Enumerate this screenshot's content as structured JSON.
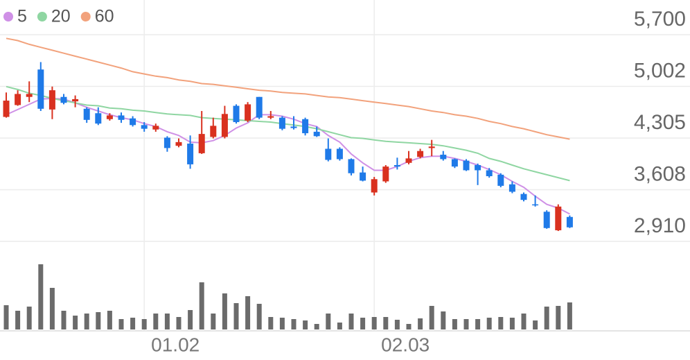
{
  "chart_data": {
    "type": "candlestick",
    "categories": [
      null,
      null,
      null,
      null,
      null,
      null,
      null,
      null,
      null,
      null,
      null,
      null,
      "01.02",
      null,
      null,
      null,
      null,
      null,
      null,
      null,
      null,
      null,
      null,
      null,
      null,
      null,
      null,
      null,
      null,
      null,
      null,
      null,
      "02.03",
      null,
      null,
      null,
      null,
      null,
      null,
      null,
      null,
      null,
      null,
      null,
      null,
      null,
      null,
      null,
      null,
      null
    ],
    "open": [
      4590,
      4750,
      4860,
      5230,
      4690,
      4860,
      4800,
      4700,
      4640,
      4560,
      4610,
      4570,
      4480,
      4420,
      4310,
      4200,
      4230,
      4100,
      4320,
      4320,
      4740,
      4540,
      4860,
      4580,
      4580,
      4460,
      4560,
      4390,
      4160,
      4160,
      4020,
      3840,
      3570,
      3720,
      3940,
      3970,
      4050,
      4170,
      4080,
      4020,
      4000,
      3940,
      3870,
      3810,
      3680,
      3550,
      3410,
      3310,
      3060,
      3240
    ],
    "high": [
      4920,
      4950,
      5070,
      5330,
      5000,
      4900,
      4880,
      4720,
      4720,
      4640,
      4650,
      4600,
      4520,
      4500,
      4330,
      4300,
      4340,
      4670,
      4580,
      4740,
      4760,
      4790,
      4860,
      4670,
      4600,
      4600,
      4580,
      4460,
      4300,
      4180,
      4030,
      3920,
      3780,
      3940,
      4040,
      4130,
      4160,
      4280,
      4130,
      4030,
      4020,
      3960,
      3900,
      3830,
      3720,
      3570,
      3530,
      3330,
      3410,
      3260
    ],
    "low": [
      4580,
      4740,
      4790,
      4670,
      4560,
      4760,
      4720,
      4510,
      4480,
      4540,
      4510,
      4460,
      4390,
      4390,
      4120,
      4180,
      3890,
      4090,
      4300,
      4300,
      4500,
      4520,
      4560,
      4560,
      4410,
      4420,
      4340,
      4320,
      3990,
      4000,
      3800,
      3720,
      3530,
      3700,
      3880,
      3950,
      4030,
      4060,
      4000,
      3900,
      3860,
      3670,
      3770,
      3640,
      3560,
      3450,
      3380,
      3080,
      3050,
      3090
    ],
    "close": [
      4810,
      4900,
      4900,
      4700,
      4950,
      4780,
      4830,
      4550,
      4500,
      4610,
      4550,
      4480,
      4430,
      4470,
      4170,
      4250,
      3950,
      4360,
      4470,
      4630,
      4520,
      4760,
      4580,
      4600,
      4430,
      4440,
      4370,
      4330,
      4010,
      4020,
      3830,
      3730,
      3750,
      3920,
      3920,
      4030,
      4130,
      4190,
      4020,
      3920,
      3870,
      3870,
      3790,
      3660,
      3580,
      3470,
      3400,
      3090,
      3380,
      3100
    ],
    "up_color": "#d9311f",
    "down_color": "#1f7ae8",
    "series": [
      {
        "name": "5",
        "color": "#cf90e6",
        "values": [
          4620,
          4690,
          4760,
          4830,
          4840,
          4830,
          4780,
          4720,
          4670,
          4620,
          4580,
          4550,
          4500,
          4460,
          4390,
          4340,
          4250,
          4240,
          4270,
          4340,
          4440,
          4510,
          4620,
          4620,
          4600,
          4560,
          4500,
          4460,
          4340,
          4250,
          4090,
          3970,
          3870,
          3870,
          3920,
          3990,
          4040,
          4060,
          4060,
          4030,
          3990,
          3940,
          3880,
          3810,
          3720,
          3640,
          3520,
          3410,
          3360,
          3280
        ]
      },
      {
        "name": "20",
        "color": "#8fd6a2",
        "values": [
          5000,
          4960,
          4910,
          4880,
          4840,
          4810,
          4780,
          4750,
          4740,
          4710,
          4700,
          4680,
          4670,
          4650,
          4630,
          4620,
          4610,
          4580,
          4570,
          4560,
          4550,
          4540,
          4530,
          4520,
          4500,
          4480,
          4460,
          4430,
          4390,
          4350,
          4310,
          4300,
          4280,
          4260,
          4250,
          4240,
          4230,
          4220,
          4200,
          4170,
          4140,
          4100,
          4030,
          3990,
          3940,
          3890,
          3850,
          3810,
          3770,
          3730
        ]
      },
      {
        "name": "60",
        "color": "#f2a27c",
        "values": [
          5650,
          5620,
          5570,
          5530,
          5490,
          5450,
          5410,
          5370,
          5330,
          5290,
          5250,
          5200,
          5170,
          5140,
          5120,
          5090,
          5070,
          5040,
          5030,
          5010,
          4990,
          4970,
          4950,
          4940,
          4920,
          4910,
          4900,
          4880,
          4860,
          4850,
          4830,
          4810,
          4790,
          4770,
          4750,
          4730,
          4700,
          4670,
          4650,
          4620,
          4600,
          4570,
          4530,
          4500,
          4460,
          4430,
          4390,
          4350,
          4320,
          4290
        ]
      }
    ],
    "volume": {
      "color": "#6b6b6b",
      "values": [
        35,
        27,
        33,
        94,
        60,
        27,
        20,
        23,
        25,
        27,
        15,
        17,
        15,
        23,
        23,
        18,
        28,
        68,
        23,
        52,
        38,
        48,
        37,
        18,
        17,
        15,
        13,
        8,
        23,
        10,
        23,
        17,
        18,
        18,
        14,
        8,
        16,
        34,
        26,
        15,
        15,
        15,
        17,
        18,
        17,
        23,
        13,
        33,
        34,
        39
      ]
    },
    "ylim": [
      2910,
      5700
    ],
    "yticks": [
      {
        "value": 5700,
        "label": "5,700"
      },
      {
        "value": 5002,
        "label": "5,002"
      },
      {
        "value": 4305,
        "label": "4,305"
      },
      {
        "value": 3608,
        "label": "3,608"
      },
      {
        "value": 2910,
        "label": "2,910"
      }
    ],
    "grid": true
  }
}
